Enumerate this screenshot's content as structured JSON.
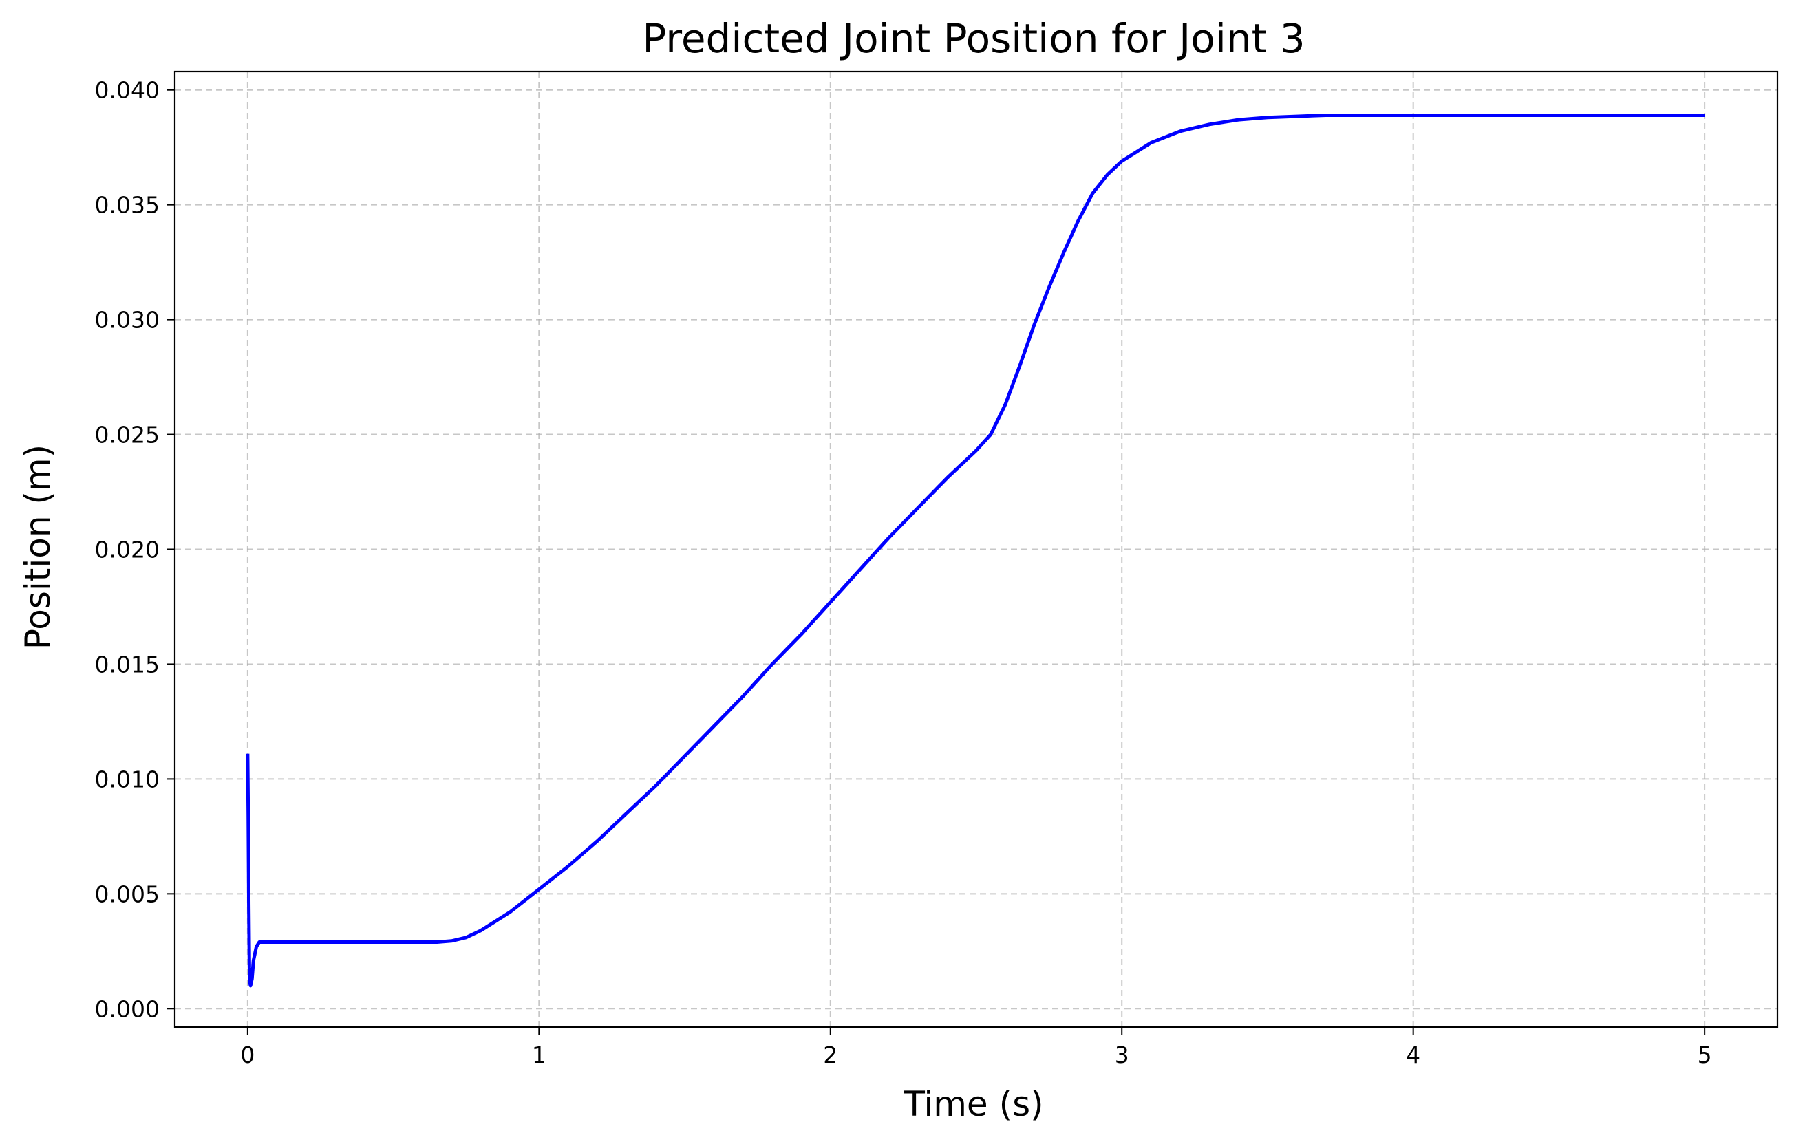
{
  "chart_data": {
    "type": "line",
    "title": "Predicted Joint Position for Joint 3",
    "xlabel": "Time (s)",
    "ylabel": "Position (m)",
    "xlim": [
      -0.25,
      5.25
    ],
    "ylim": [
      -0.0008,
      0.0408
    ],
    "x_ticks": [
      0,
      1,
      2,
      3,
      4,
      5
    ],
    "x_tick_labels": [
      "0",
      "1",
      "2",
      "3",
      "4",
      "5"
    ],
    "y_ticks": [
      0.0,
      0.005,
      0.01,
      0.015,
      0.02,
      0.025,
      0.03,
      0.035,
      0.04
    ],
    "y_tick_labels": [
      "0.000",
      "0.005",
      "0.010",
      "0.015",
      "0.020",
      "0.025",
      "0.030",
      "0.035",
      "0.040"
    ],
    "grid": true,
    "series": [
      {
        "color": "#0000ff",
        "x": [
          0.0,
          0.002,
          0.004,
          0.006,
          0.008,
          0.01,
          0.015,
          0.02,
          0.03,
          0.04,
          0.05,
          0.07,
          0.1,
          0.2,
          0.3,
          0.4,
          0.5,
          0.6,
          0.65,
          0.7,
          0.75,
          0.8,
          0.85,
          0.9,
          0.95,
          1.0,
          1.1,
          1.2,
          1.3,
          1.4,
          1.5,
          1.6,
          1.7,
          1.8,
          1.9,
          2.0,
          2.1,
          2.2,
          2.3,
          2.4,
          2.5,
          2.55,
          2.6,
          2.65,
          2.7,
          2.75,
          2.8,
          2.85,
          2.9,
          2.95,
          3.0,
          3.05,
          3.1,
          3.2,
          3.3,
          3.4,
          3.5,
          3.6,
          3.7,
          3.8,
          3.9,
          4.0,
          4.5,
          5.0
        ],
        "y": [
          0.0111,
          0.0085,
          0.0045,
          0.0018,
          0.0011,
          0.001,
          0.0013,
          0.0021,
          0.0027,
          0.0029,
          0.0029,
          0.0029,
          0.0029,
          0.0029,
          0.0029,
          0.0029,
          0.0029,
          0.0029,
          0.0029,
          0.00295,
          0.0031,
          0.0034,
          0.0038,
          0.0042,
          0.0047,
          0.0052,
          0.0062,
          0.0073,
          0.0085,
          0.0097,
          0.011,
          0.0123,
          0.0136,
          0.015,
          0.0163,
          0.0177,
          0.0191,
          0.0205,
          0.0218,
          0.0231,
          0.0243,
          0.025,
          0.0263,
          0.028,
          0.0298,
          0.0314,
          0.0329,
          0.0343,
          0.0355,
          0.0363,
          0.0369,
          0.0373,
          0.0377,
          0.0382,
          0.0385,
          0.0387,
          0.0388,
          0.03885,
          0.0389,
          0.0389,
          0.0389,
          0.0389,
          0.0389,
          0.0389
        ]
      }
    ]
  }
}
